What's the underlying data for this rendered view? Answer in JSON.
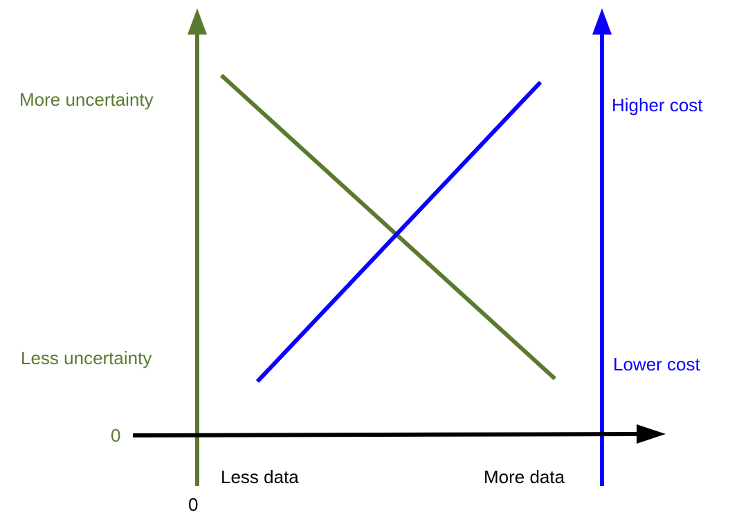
{
  "colors": {
    "uncertainty": "#5b7a30",
    "cost": "#0a00ff",
    "axis": "#000000"
  },
  "left_axis": {
    "top_label": "More uncertainty",
    "bottom_label": "Less uncertainty",
    "zero_label": "0"
  },
  "right_axis": {
    "top_label": "Higher cost",
    "bottom_label": "Lower cost"
  },
  "x_axis": {
    "origin_label": "0",
    "left_label": "Less data",
    "right_label": "More data"
  },
  "series": [
    {
      "kind": "uncertainty",
      "trend": "decreasing"
    },
    {
      "kind": "cost",
      "trend": "increasing"
    }
  ]
}
